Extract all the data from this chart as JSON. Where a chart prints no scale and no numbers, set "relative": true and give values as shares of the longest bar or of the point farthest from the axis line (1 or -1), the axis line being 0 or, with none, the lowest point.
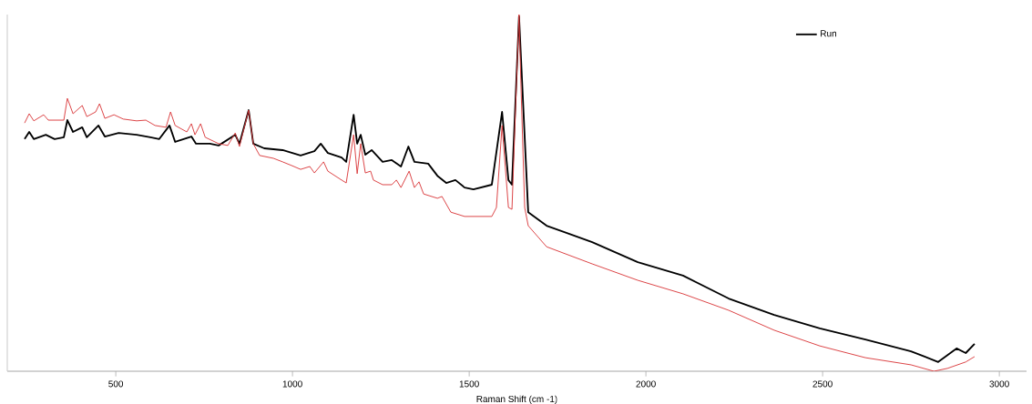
{
  "chart_data": {
    "type": "line",
    "relative": true,
    "xlabel": "Raman Shift (cm -1)",
    "xlim": [
      193,
      3077
    ],
    "xticks": [
      500,
      1000,
      1500,
      2000,
      2500,
      3000
    ],
    "legend": "top right",
    "marker": "none",
    "line_style": "solid",
    "series": [
      {
        "name": "Run",
        "color": "#000000",
        "x": [
          242,
          255,
          268,
          302,
          327,
          353,
          363,
          379,
          405,
          418,
          451,
          469,
          508,
          559,
          598,
          623,
          652,
          668,
          714,
          727,
          766,
          791,
          838,
          850,
          876,
          889,
          920,
          972,
          1023,
          1062,
          1080,
          1100,
          1139,
          1152,
          1173,
          1183,
          1193,
          1206,
          1224,
          1255,
          1281,
          1307,
          1328,
          1345,
          1384,
          1410,
          1435,
          1461,
          1487,
          1512,
          1564,
          1593,
          1611,
          1621,
          1641,
          1667,
          1719,
          1848,
          1977,
          2105,
          2234,
          2363,
          2492,
          2621,
          2750,
          2827,
          2879,
          2905,
          2930
        ],
        "values": [
          0.651,
          0.671,
          0.651,
          0.663,
          0.651,
          0.656,
          0.704,
          0.671,
          0.684,
          0.656,
          0.689,
          0.658,
          0.668,
          0.663,
          0.656,
          0.651,
          0.689,
          0.643,
          0.658,
          0.638,
          0.638,
          0.633,
          0.663,
          0.638,
          0.732,
          0.638,
          0.625,
          0.62,
          0.605,
          0.617,
          0.638,
          0.612,
          0.599,
          0.587,
          0.719,
          0.638,
          0.663,
          0.607,
          0.62,
          0.587,
          0.592,
          0.574,
          0.63,
          0.587,
          0.582,
          0.548,
          0.528,
          0.536,
          0.515,
          0.51,
          0.523,
          0.727,
          0.536,
          0.523,
          0.995,
          0.446,
          0.408,
          0.362,
          0.306,
          0.268,
          0.204,
          0.158,
          0.12,
          0.089,
          0.056,
          0.026,
          0.064,
          0.051,
          0.077
        ]
      },
      {
        "color": "#d9383a",
        "x": [
          242,
          255,
          268,
          296,
          309,
          353,
          363,
          379,
          405,
          418,
          443,
          454,
          469,
          495,
          521,
          559,
          585,
          611,
          642,
          655,
          668,
          701,
          714,
          724,
          740,
          753,
          791,
          817,
          838,
          850,
          876,
          889,
          907,
          946,
          972,
          997,
          1023,
          1049,
          1062,
          1088,
          1100,
          1139,
          1152,
          1173,
          1183,
          1193,
          1206,
          1221,
          1229,
          1255,
          1281,
          1294,
          1307,
          1330,
          1345,
          1358,
          1371,
          1410,
          1423,
          1448,
          1487,
          1526,
          1564,
          1577,
          1593,
          1611,
          1621,
          1636,
          1641,
          1646,
          1657,
          1667,
          1719,
          1848,
          1977,
          2105,
          2234,
          2363,
          2492,
          2621,
          2750,
          2815,
          2853,
          2905,
          2930
        ],
        "values": [
          0.696,
          0.722,
          0.702,
          0.719,
          0.704,
          0.704,
          0.765,
          0.722,
          0.745,
          0.714,
          0.727,
          0.75,
          0.709,
          0.719,
          0.707,
          0.702,
          0.704,
          0.689,
          0.684,
          0.727,
          0.689,
          0.671,
          0.694,
          0.663,
          0.694,
          0.656,
          0.638,
          0.633,
          0.668,
          0.63,
          0.732,
          0.638,
          0.605,
          0.597,
          0.587,
          0.577,
          0.566,
          0.574,
          0.556,
          0.587,
          0.561,
          0.536,
          0.528,
          0.663,
          0.554,
          0.638,
          0.556,
          0.561,
          0.536,
          0.523,
          0.523,
          0.536,
          0.515,
          0.561,
          0.515,
          0.531,
          0.497,
          0.485,
          0.49,
          0.446,
          0.434,
          0.434,
          0.434,
          0.459,
          0.689,
          0.459,
          0.454,
          0.867,
          1.0,
          0.816,
          0.459,
          0.408,
          0.349,
          0.301,
          0.255,
          0.217,
          0.171,
          0.115,
          0.071,
          0.038,
          0.018,
          0,
          0.008,
          0.026,
          0.041
        ]
      }
    ]
  }
}
